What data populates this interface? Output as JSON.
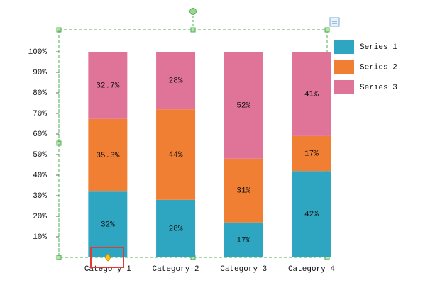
{
  "chart_data": {
    "type": "stacked_bar",
    "categories": [
      "Category 1",
      "Category 2",
      "Category 3",
      "Category 4"
    ],
    "series": [
      {
        "name": "Series 1",
        "color": "#2ea6c2",
        "values": [
          32,
          28,
          17,
          42
        ],
        "value_labels": [
          "32%",
          "28%",
          "17%",
          "42%"
        ]
      },
      {
        "name": "Series 2",
        "color": "#f07f34",
        "values": [
          35.3,
          44,
          31,
          17
        ],
        "value_labels": [
          "35.3%",
          "44%",
          "31%",
          "17%"
        ]
      },
      {
        "name": "Series 3",
        "color": "#e07398",
        "values": [
          32.7,
          28,
          52,
          41
        ],
        "value_labels": [
          "32.7%",
          "28%",
          "52%",
          "41%"
        ]
      }
    ],
    "ylim": [
      0,
      100
    ],
    "yticks": [
      {
        "value": 10,
        "label": "10%"
      },
      {
        "value": 20,
        "label": "20%"
      },
      {
        "value": 30,
        "label": "30%"
      },
      {
        "value": 40,
        "label": "40%"
      },
      {
        "value": 50,
        "label": "50%"
      },
      {
        "value": 60,
        "label": "60%"
      },
      {
        "value": 70,
        "label": "70%"
      },
      {
        "value": 80,
        "label": "80%"
      },
      {
        "value": 90,
        "label": "90%"
      },
      {
        "value": 100,
        "label": "100%"
      }
    ],
    "legend": "right"
  }
}
